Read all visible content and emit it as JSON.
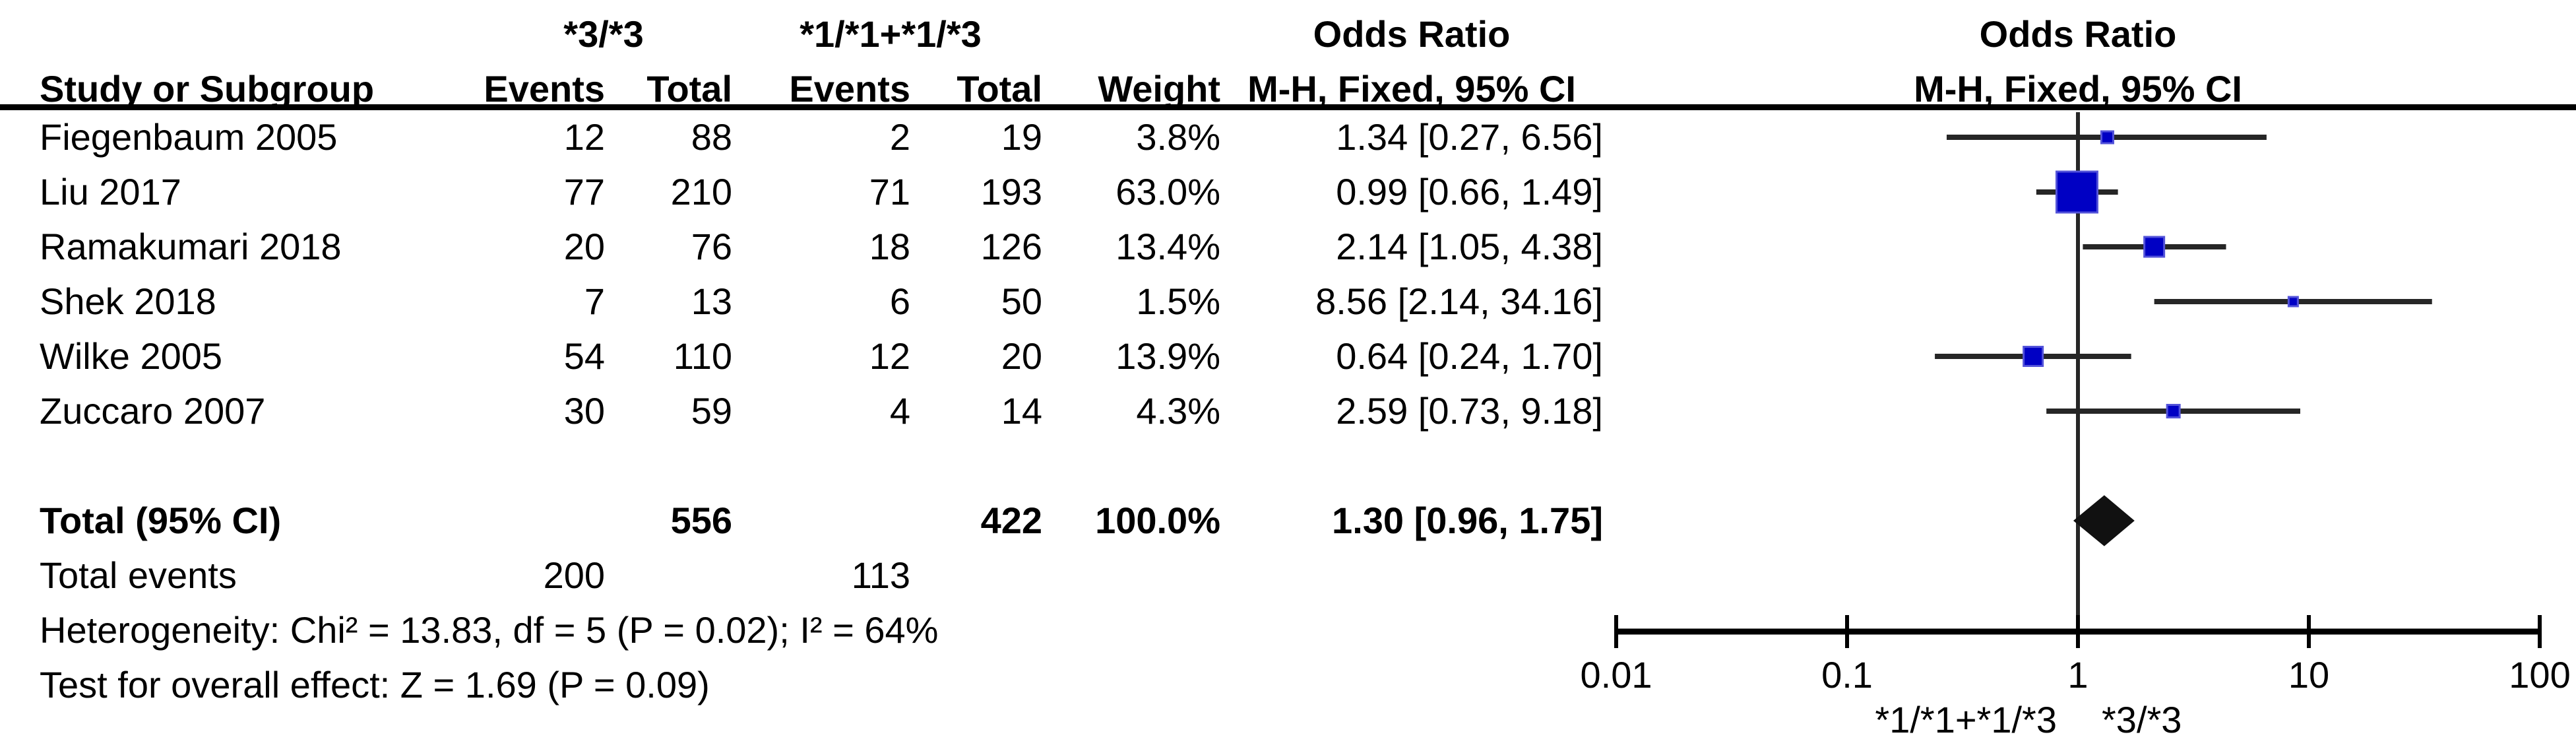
{
  "table": {
    "group1_label": "*3/*3",
    "group2_label": "*1/*1+*1/*3",
    "or_header": "Odds Ratio",
    "method_header": "M-H, Fixed, 95% CI",
    "col_study": "Study or Subgroup",
    "col_events": "Events",
    "col_total": "Total",
    "col_weight": "Weight"
  },
  "plot": {
    "or_header": "Odds Ratio",
    "method_header": "M-H, Fixed, 95% CI",
    "favour_left": "*1/*1+*1/*3",
    "favour_right": "*3/*3",
    "marker_color": "#0000c4",
    "marker_border_color": "#5353d9",
    "line_color": "#262626",
    "diamond_color": "#111111"
  },
  "footer": {
    "heterogeneity": "Heterogeneity: Chi² = 13.83, df = 5 (P = 0.02); I² = 64%",
    "overall_effect": "Test for overall effect: Z = 1.69 (P = 0.09)"
  },
  "chart_data": {
    "type": "forest",
    "title": "Odds Ratio, M-H, Fixed, 95% CI",
    "x_scale": "log",
    "axis_ticks": [
      0.01,
      0.1,
      1,
      10,
      100
    ],
    "axis_tick_labels": [
      "0.01",
      "0.1",
      "1",
      "10",
      "100"
    ],
    "xlim": [
      0.01,
      100
    ],
    "studies": [
      {
        "name": "Fiegenbaum 2005",
        "events1": 12,
        "total1": 88,
        "events2": 2,
        "total2": 19,
        "weight": "3.8%",
        "or": 1.34,
        "ci_low": 0.27,
        "ci_high": 6.56,
        "ci_text": "1.34 [0.27, 6.56]",
        "marker_size": 18
      },
      {
        "name": "Liu 2017",
        "events1": 77,
        "total1": 210,
        "events2": 71,
        "total2": 193,
        "weight": "63.0%",
        "or": 0.99,
        "ci_low": 0.66,
        "ci_high": 1.49,
        "ci_text": "0.99 [0.66, 1.49]",
        "marker_size": 62
      },
      {
        "name": "Ramakumari 2018",
        "events1": 20,
        "total1": 76,
        "events2": 18,
        "total2": 126,
        "weight": "13.4%",
        "or": 2.14,
        "ci_low": 1.05,
        "ci_high": 4.38,
        "ci_text": "2.14 [1.05, 4.38]",
        "marker_size": 30
      },
      {
        "name": "Shek 2018",
        "events1": 7,
        "total1": 13,
        "events2": 6,
        "total2": 50,
        "weight": "1.5%",
        "or": 8.56,
        "ci_low": 2.14,
        "ci_high": 34.16,
        "ci_text": "8.56 [2.14, 34.16]",
        "marker_size": 14
      },
      {
        "name": "Wilke 2005",
        "events1": 54,
        "total1": 110,
        "events2": 12,
        "total2": 20,
        "weight": "13.9%",
        "or": 0.64,
        "ci_low": 0.24,
        "ci_high": 1.7,
        "ci_text": "0.64 [0.24, 1.70]",
        "marker_size": 29
      },
      {
        "name": "Zuccaro 2007",
        "events1": 30,
        "total1": 59,
        "events2": 4,
        "total2": 14,
        "weight": "4.3%",
        "or": 2.59,
        "ci_low": 0.73,
        "ci_high": 9.18,
        "ci_text": "2.59 [0.73, 9.18]",
        "marker_size": 19
      }
    ],
    "total": {
      "label": "Total (95% CI)",
      "total1": 556,
      "total2": 422,
      "weight": "100.0%",
      "or": 1.3,
      "ci_low": 0.96,
      "ci_high": 1.75,
      "ci_text": "1.30 [0.96, 1.75]"
    },
    "total_events": {
      "label": "Total events",
      "group1": 200,
      "group2": 113
    }
  }
}
